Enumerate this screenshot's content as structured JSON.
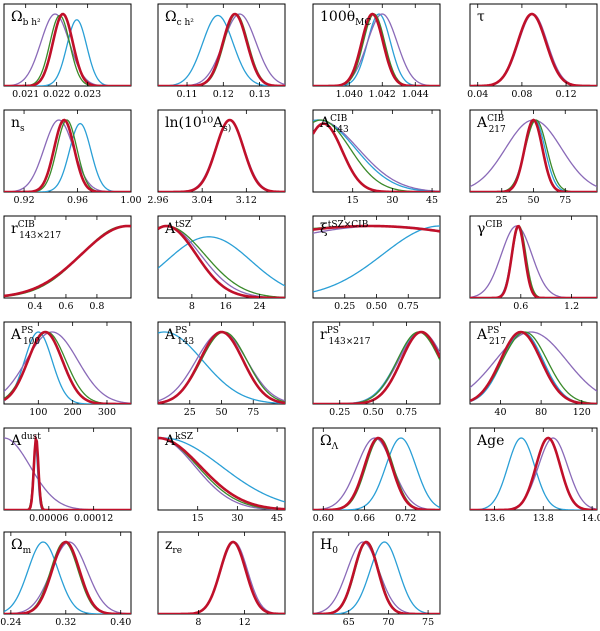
{
  "colors": {
    "red": "#c0102a",
    "blue": "#2a9fd6",
    "green": "#3a8a2a",
    "purple": "#8a6ab8"
  },
  "chart_data": [
    {
      "type": "line",
      "title": "Ω_b h²",
      "xlim": [
        0.0203,
        0.0244
      ],
      "ticks": [
        "0.021",
        "0.022",
        "0.023"
      ],
      "tickvals": [
        0.021,
        0.022,
        0.023
      ],
      "curves": [
        {
          "color": "purple",
          "mu": 0.02195,
          "sigma": 0.00046,
          "peak": 1.0
        },
        {
          "color": "blue",
          "mu": 0.02265,
          "sigma": 0.00032,
          "peak": 0.92
        },
        {
          "color": "green",
          "mu": 0.0221,
          "sigma": 0.00032,
          "peak": 0.98
        },
        {
          "color": "red",
          "mu": 0.0222,
          "sigma": 0.00032,
          "peak": 1.0
        }
      ]
    },
    {
      "type": "line",
      "title": "Ω_c h²",
      "xlim": [
        0.102,
        0.137
      ],
      "ticks": [
        "0.11",
        "0.12",
        "0.13"
      ],
      "tickvals": [
        0.11,
        0.12,
        0.13
      ],
      "curves": [
        {
          "color": "blue",
          "mu": 0.1185,
          "sigma": 0.0042,
          "peak": 0.98
        },
        {
          "color": "purple",
          "mu": 0.1245,
          "sigma": 0.0045,
          "peak": 1.0
        },
        {
          "color": "green",
          "mu": 0.1235,
          "sigma": 0.0033,
          "peak": 1.0
        },
        {
          "color": "red",
          "mu": 0.1232,
          "sigma": 0.0033,
          "peak": 1.0
        }
      ]
    },
    {
      "type": "line",
      "title": "100θ_MC",
      "xlim": [
        1.0378,
        1.0455
      ],
      "ticks": [
        "1.040",
        "1.042",
        "1.044"
      ],
      "tickvals": [
        1.04,
        1.042,
        1.044
      ],
      "curves": [
        {
          "color": "blue",
          "mu": 1.0418,
          "sigma": 0.0007,
          "peak": 1.0
        },
        {
          "color": "purple",
          "mu": 1.042,
          "sigma": 0.0009,
          "peak": 1.0
        },
        {
          "color": "green",
          "mu": 1.0415,
          "sigma": 0.00065,
          "peak": 1.0
        },
        {
          "color": "red",
          "mu": 1.0414,
          "sigma": 0.00065,
          "peak": 1.0
        }
      ]
    },
    {
      "type": "line",
      "title": "τ",
      "xlim": [
        0.033,
        0.148
      ],
      "ticks": [
        "0.04",
        "0.08",
        "0.12"
      ],
      "tickvals": [
        0.04,
        0.08,
        0.12
      ],
      "curves": [
        {
          "color": "blue",
          "mu": 0.089,
          "sigma": 0.013,
          "peak": 1.0
        },
        {
          "color": "purple",
          "mu": 0.09,
          "sigma": 0.013,
          "peak": 1.0
        },
        {
          "color": "green",
          "mu": 0.089,
          "sigma": 0.0128,
          "peak": 1.0
        },
        {
          "color": "red",
          "mu": 0.089,
          "sigma": 0.0128,
          "peak": 1.0
        }
      ]
    },
    {
      "type": "line",
      "title": "n_s",
      "xlim": [
        0.905,
        1.0
      ],
      "ticks": [
        "0.92",
        "0.96",
        "1.00"
      ],
      "tickvals": [
        0.92,
        0.96,
        1.0
      ],
      "curves": [
        {
          "color": "purple",
          "mu": 0.946,
          "sigma": 0.011,
          "peak": 1.0
        },
        {
          "color": "blue",
          "mu": 0.962,
          "sigma": 0.008,
          "peak": 0.95
        },
        {
          "color": "green",
          "mu": 0.952,
          "sigma": 0.0075,
          "peak": 1.0
        },
        {
          "color": "red",
          "mu": 0.95,
          "sigma": 0.0075,
          "peak": 1.0
        }
      ]
    },
    {
      "type": "line",
      "title": "ln(10¹⁰A_s)",
      "xlim": [
        2.96,
        3.19
      ],
      "ticks": [
        "2.96",
        "3.04",
        "3.12"
      ],
      "tickvals": [
        2.96,
        3.04,
        3.12
      ],
      "curves": [
        {
          "color": "blue",
          "mu": 3.09,
          "sigma": 0.025,
          "peak": 1.0
        },
        {
          "color": "purple",
          "mu": 3.09,
          "sigma": 0.026,
          "peak": 1.0
        },
        {
          "color": "green",
          "mu": 3.09,
          "sigma": 0.025,
          "peak": 1.0
        },
        {
          "color": "red",
          "mu": 3.09,
          "sigma": 0.025,
          "peak": 1.0
        }
      ]
    },
    {
      "type": "line",
      "title": "A^CIB_143",
      "xlim": [
        0,
        48
      ],
      "ticks": [
        "15",
        "30",
        "45"
      ],
      "tickvals": [
        15,
        30,
        45
      ],
      "curves": [
        {
          "color": "purple",
          "mu": 2,
          "sigma": 15,
          "peak": 1.0
        },
        {
          "color": "blue",
          "mu": 2,
          "sigma": 14,
          "peak": 1.0
        },
        {
          "color": "green",
          "mu": 3,
          "sigma": 11,
          "peak": 1.0
        },
        {
          "color": "red",
          "mu": 4,
          "sigma": 7,
          "peak": 0.95
        }
      ]
    },
    {
      "type": "line",
      "title": "A^CIB_217",
      "xlim": [
        0,
        100
      ],
      "ticks": [
        "25",
        "50",
        "75"
      ],
      "tickvals": [
        25,
        50,
        75
      ],
      "curves": [
        {
          "color": "purple",
          "mu": 50,
          "sigma": 22,
          "peak": 1.0
        },
        {
          "color": "blue",
          "mu": 51,
          "sigma": 8,
          "peak": 1.0
        },
        {
          "color": "green",
          "mu": 52,
          "sigma": 8.5,
          "peak": 1.0
        },
        {
          "color": "red",
          "mu": 50,
          "sigma": 7,
          "peak": 1.0
        }
      ]
    },
    {
      "type": "line",
      "title": "r^CIB_143×217",
      "xlim": [
        0.2,
        1.02
      ],
      "ticks": [
        "0.4",
        "0.6",
        "0.8"
      ],
      "tickvals": [
        0.4,
        0.6,
        0.8
      ],
      "curves": [
        {
          "color": "purple",
          "mu": 1.0,
          "sigma": 0.3,
          "peak": 1.0
        },
        {
          "color": "blue",
          "mu": 1.0,
          "sigma": 0.3,
          "peak": 1.0
        },
        {
          "color": "green",
          "mu": 0.98,
          "sigma": 0.28,
          "peak": 1.0
        },
        {
          "color": "red",
          "mu": 1.0,
          "sigma": 0.3,
          "peak": 1.0
        }
      ]
    },
    {
      "type": "line",
      "title": "A^tSZ",
      "xlim": [
        0,
        30
      ],
      "ticks": [
        "8",
        "16",
        "24"
      ],
      "tickvals": [
        8,
        16,
        24
      ],
      "curves": [
        {
          "color": "blue",
          "mu": 12,
          "sigma": 10,
          "peak": 0.85
        },
        {
          "color": "purple",
          "mu": 2,
          "sigma": 8,
          "peak": 1.0
        },
        {
          "color": "green",
          "mu": 2,
          "sigma": 9,
          "peak": 1.0
        },
        {
          "color": "red",
          "mu": 2,
          "sigma": 7,
          "peak": 1.0
        }
      ]
    },
    {
      "type": "line",
      "title": "ξ^tSZ×CIB",
      "xlim": [
        0,
        1
      ],
      "ticks": [
        "0.25",
        "0.50",
        "0.75"
      ],
      "tickvals": [
        0.25,
        0.5,
        0.75
      ],
      "curves": [
        {
          "color": "blue",
          "mu": 1.0,
          "sigma": 0.45,
          "peak": 1.0
        },
        {
          "color": "purple",
          "mu": 0.55,
          "sigma": 1.2,
          "peak": 1.0
        },
        {
          "color": "green",
          "mu": 0.4,
          "sigma": 1.5,
          "peak": 1.0
        },
        {
          "color": "red",
          "mu": 0.45,
          "sigma": 1.4,
          "peak": 1.0
        }
      ]
    },
    {
      "type": "line",
      "title": "γ^CIB",
      "xlim": [
        0,
        1.5
      ],
      "ticks": [
        "0.6",
        "1.2"
      ],
      "tickvals": [
        0.6,
        1.2
      ],
      "curves": [
        {
          "color": "purple",
          "mu": 0.55,
          "sigma": 0.18,
          "peak": 1.0
        },
        {
          "color": "blue",
          "mu": 0.57,
          "sigma": 0.08,
          "peak": 1.0
        },
        {
          "color": "green",
          "mu": 0.58,
          "sigma": 0.08,
          "peak": 1.0
        },
        {
          "color": "red",
          "mu": 0.57,
          "sigma": 0.075,
          "peak": 1.0
        }
      ]
    },
    {
      "type": "line",
      "title": "A^PS_100",
      "xlim": [
        0,
        370
      ],
      "ticks": [
        "100",
        "200",
        "300"
      ],
      "tickvals": [
        100,
        200,
        300
      ],
      "curves": [
        {
          "color": "blue",
          "mu": 100,
          "sigma": 40,
          "peak": 1.0
        },
        {
          "color": "purple",
          "mu": 140,
          "sigma": 75,
          "peak": 1.0
        },
        {
          "color": "green",
          "mu": 125,
          "sigma": 55,
          "peak": 1.0
        },
        {
          "color": "red",
          "mu": 120,
          "sigma": 50,
          "peak": 1.0
        }
      ]
    },
    {
      "type": "line",
      "title": "A^PS_143",
      "xlim": [
        0,
        100
      ],
      "ticks": [
        "25",
        "50",
        "75"
      ],
      "tickvals": [
        25,
        50,
        75
      ],
      "curves": [
        {
          "color": "blue",
          "mu": 5,
          "sigma": 30,
          "peak": 1.0
        },
        {
          "color": "purple",
          "mu": 50,
          "sigma": 20,
          "peak": 1.0
        },
        {
          "color": "green",
          "mu": 52,
          "sigma": 18,
          "peak": 1.0
        },
        {
          "color": "red",
          "mu": 50,
          "sigma": 17,
          "peak": 1.0
        }
      ]
    },
    {
      "type": "line",
      "title": "r^PS_143×217",
      "xlim": [
        0.05,
        1.0
      ],
      "ticks": [
        "0.25",
        "0.50",
        "0.75"
      ],
      "tickvals": [
        0.25,
        0.5,
        0.75
      ],
      "curves": [
        {
          "color": "blue",
          "mu": 0.85,
          "sigma": 0.17,
          "peak": 1.0
        },
        {
          "color": "purple",
          "mu": 0.86,
          "sigma": 0.17,
          "peak": 1.0
        },
        {
          "color": "green",
          "mu": 0.84,
          "sigma": 0.16,
          "peak": 1.0
        },
        {
          "color": "red",
          "mu": 0.86,
          "sigma": 0.15,
          "peak": 1.0
        }
      ]
    },
    {
      "type": "line",
      "title": "A^PS_217",
      "xlim": [
        10,
        135
      ],
      "ticks": [
        "40",
        "80",
        "120"
      ],
      "tickvals": [
        40,
        80,
        120
      ],
      "curves": [
        {
          "color": "purple",
          "mu": 70,
          "sigma": 35,
          "peak": 1.0
        },
        {
          "color": "blue",
          "mu": 62,
          "sigma": 20,
          "peak": 1.0
        },
        {
          "color": "green",
          "mu": 64,
          "sigma": 22,
          "peak": 1.0
        },
        {
          "color": "red",
          "mu": 60,
          "sigma": 20,
          "peak": 1.0
        }
      ]
    },
    {
      "type": "line",
      "title": "A^dust",
      "xlim": [
        0,
        0.00017
      ],
      "ticks": [
        "0.00006",
        "0.00012"
      ],
      "tickvals": [
        6e-05,
        0.00012
      ],
      "curves": [
        {
          "color": "purple",
          "mu": 0.0,
          "sigma": 3.5e-05,
          "peak": 1.0
        },
        {
          "color": "blue",
          "mu": 4.2e-05,
          "sigma": 3e-06,
          "peak": 0.9
        },
        {
          "color": "green",
          "mu": 4.3e-05,
          "sigma": 3.5e-06,
          "peak": 0.95
        },
        {
          "color": "red",
          "mu": 4.3e-05,
          "sigma": 3e-06,
          "peak": 1.0
        }
      ]
    },
    {
      "type": "line",
      "title": "A^kSZ",
      "xlim": [
        0,
        48
      ],
      "ticks": [
        "15",
        "30",
        "45"
      ],
      "tickvals": [
        15,
        30,
        45
      ],
      "curves": [
        {
          "color": "blue",
          "mu": 2,
          "sigma": 22,
          "peak": 1.0
        },
        {
          "color": "purple",
          "mu": 0,
          "sigma": 14,
          "peak": 1.0
        },
        {
          "color": "green",
          "mu": 0,
          "sigma": 15,
          "peak": 1.0
        },
        {
          "color": "red",
          "mu": 0,
          "sigma": 16,
          "peak": 1.0
        }
      ]
    },
    {
      "type": "line",
      "title": "Ω_Λ",
      "xlim": [
        0.585,
        0.77
      ],
      "ticks": [
        "0.60",
        "0.66",
        "0.72"
      ],
      "tickvals": [
        0.6,
        0.66,
        0.72
      ],
      "curves": [
        {
          "color": "blue",
          "mu": 0.713,
          "sigma": 0.022,
          "peak": 1.0
        },
        {
          "color": "purple",
          "mu": 0.675,
          "sigma": 0.026,
          "peak": 1.0
        },
        {
          "color": "green",
          "mu": 0.682,
          "sigma": 0.02,
          "peak": 1.0
        },
        {
          "color": "red",
          "mu": 0.68,
          "sigma": 0.02,
          "peak": 1.0
        }
      ]
    },
    {
      "type": "line",
      "title": "Age",
      "xlim": [
        13.5,
        14.02
      ],
      "ticks": [
        "13.6",
        "13.8",
        "14.0"
      ],
      "tickvals": [
        13.6,
        13.8,
        14.0
      ],
      "curves": [
        {
          "color": "blue",
          "mu": 13.71,
          "sigma": 0.055,
          "peak": 1.0
        },
        {
          "color": "purple",
          "mu": 13.84,
          "sigma": 0.06,
          "peak": 1.0
        },
        {
          "color": "green",
          "mu": 13.82,
          "sigma": 0.05,
          "peak": 1.0
        },
        {
          "color": "red",
          "mu": 13.82,
          "sigma": 0.05,
          "peak": 1.0
        }
      ]
    },
    {
      "type": "line",
      "title": "Ω_m",
      "xlim": [
        0.23,
        0.415
      ],
      "ticks": [
        "0.24",
        "0.32",
        "0.40"
      ],
      "tickvals": [
        0.24,
        0.32,
        0.4
      ],
      "curves": [
        {
          "color": "blue",
          "mu": 0.287,
          "sigma": 0.022,
          "peak": 1.0
        },
        {
          "color": "purple",
          "mu": 0.325,
          "sigma": 0.026,
          "peak": 1.0
        },
        {
          "color": "green",
          "mu": 0.318,
          "sigma": 0.02,
          "peak": 1.0
        },
        {
          "color": "red",
          "mu": 0.32,
          "sigma": 0.02,
          "peak": 1.0
        }
      ]
    },
    {
      "type": "line",
      "title": "z_re",
      "xlim": [
        4.5,
        15.5
      ],
      "ticks": [
        "8",
        "12"
      ],
      "tickvals": [
        8,
        12
      ],
      "curves": [
        {
          "color": "blue",
          "mu": 11.0,
          "sigma": 1.1,
          "peak": 1.0
        },
        {
          "color": "purple",
          "mu": 11.1,
          "sigma": 1.15,
          "peak": 1.0
        },
        {
          "color": "green",
          "mu": 11.0,
          "sigma": 1.1,
          "peak": 1.0
        },
        {
          "color": "red",
          "mu": 11.0,
          "sigma": 1.1,
          "peak": 1.0
        }
      ]
    },
    {
      "type": "line",
      "title": "H_0",
      "xlim": [
        60.5,
        76.5
      ],
      "ticks": [
        "65",
        "70",
        "75"
      ],
      "tickvals": [
        65,
        70,
        75
      ],
      "curves": [
        {
          "color": "blue",
          "mu": 69.5,
          "sigma": 1.8,
          "peak": 1.0
        },
        {
          "color": "purple",
          "mu": 66.8,
          "sigma": 2.0,
          "peak": 1.0
        },
        {
          "color": "green",
          "mu": 67.3,
          "sigma": 1.5,
          "peak": 1.0
        },
        {
          "color": "red",
          "mu": 67.2,
          "sigma": 1.5,
          "peak": 1.0
        }
      ]
    }
  ]
}
